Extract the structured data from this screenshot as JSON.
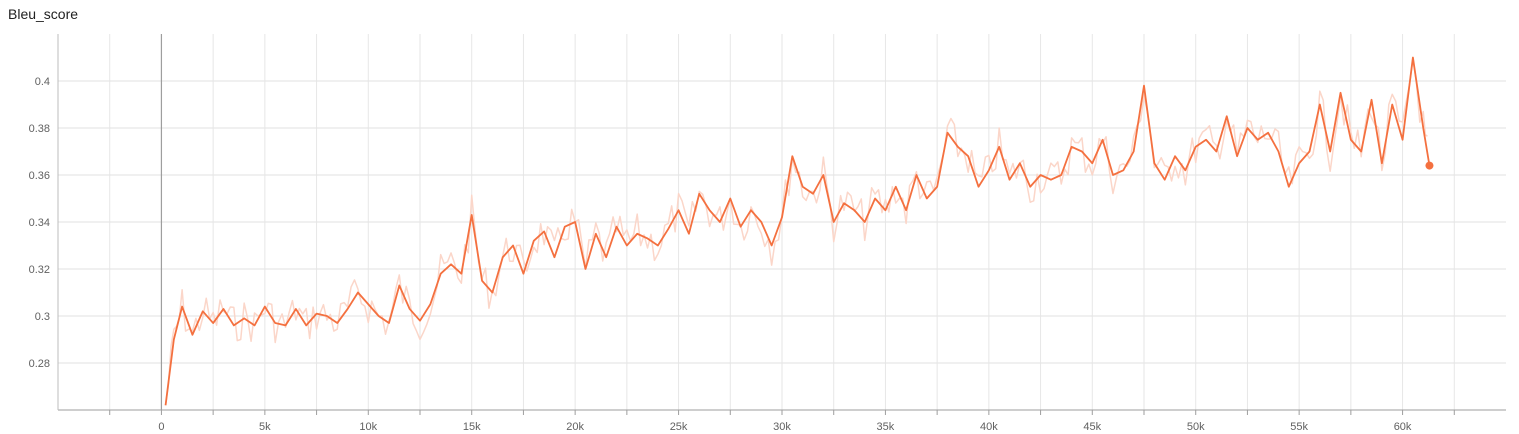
{
  "chart_data": {
    "type": "line",
    "title": "Bleu_score",
    "xlabel": "",
    "ylabel": "",
    "xlim": [
      -5000,
      65000
    ],
    "ylim": [
      0.26,
      0.42
    ],
    "x_ticks": [
      0,
      5000,
      10000,
      15000,
      20000,
      25000,
      30000,
      35000,
      40000,
      45000,
      50000,
      55000,
      60000
    ],
    "x_tick_labels": [
      "0",
      "5k",
      "10k",
      "15k",
      "20k",
      "25k",
      "30k",
      "35k",
      "40k",
      "45k",
      "50k",
      "55k",
      "60k"
    ],
    "y_ticks": [
      0.28,
      0.3,
      0.32,
      0.34,
      0.36,
      0.38,
      0.4
    ],
    "y_tick_labels": [
      "0.28",
      "0.3",
      "0.32",
      "0.34",
      "0.36",
      "0.38",
      "0.4"
    ],
    "grid": true,
    "colors": {
      "smoothed": "#f4703f",
      "raw": "#fbd6c9"
    },
    "series": [
      {
        "x": [
          200,
          600,
          1000,
          1500,
          2000,
          2500,
          3000,
          3500,
          4000,
          4500,
          5000,
          5500,
          6000,
          6500,
          7000,
          7500,
          8000,
          8500,
          9000,
          9500,
          10000,
          10500,
          11000,
          11500,
          12000,
          12500,
          13000,
          13500,
          14000,
          14500,
          15000,
          15500,
          16000,
          16500,
          17000,
          17500,
          18000,
          18500,
          19000,
          19500,
          20000,
          20500,
          21000,
          21500,
          22000,
          22500,
          23000,
          23500,
          24000,
          24500,
          25000,
          25500,
          26000,
          26500,
          27000,
          27500,
          28000,
          28500,
          29000,
          29500,
          30000,
          30500,
          31000,
          31500,
          32000,
          32500,
          33000,
          33500,
          34000,
          34500,
          35000,
          35500,
          36000,
          36500,
          37000,
          37500,
          38000,
          38500,
          39000,
          39500,
          40000,
          40500,
          41000,
          41500,
          42000,
          42500,
          43000,
          43500,
          44000,
          44500,
          45000,
          45500,
          46000,
          46500,
          47000,
          47500,
          48000,
          48500,
          49000,
          49500,
          50000,
          50500,
          51000,
          51500,
          52000,
          52500,
          53000,
          53500,
          54000,
          54500,
          55000,
          55500,
          56000,
          56500,
          57000,
          57500,
          58000,
          58500,
          59000,
          59500,
          60000,
          60500,
          61000,
          61300
        ],
        "values": [
          0.262,
          0.29,
          0.304,
          0.292,
          0.302,
          0.297,
          0.303,
          0.296,
          0.299,
          0.296,
          0.304,
          0.297,
          0.296,
          0.303,
          0.296,
          0.301,
          0.3,
          0.297,
          0.303,
          0.31,
          0.305,
          0.3,
          0.297,
          0.313,
          0.303,
          0.298,
          0.305,
          0.318,
          0.322,
          0.318,
          0.343,
          0.315,
          0.31,
          0.325,
          0.33,
          0.318,
          0.332,
          0.336,
          0.325,
          0.338,
          0.34,
          0.32,
          0.335,
          0.325,
          0.338,
          0.33,
          0.335,
          0.333,
          0.33,
          0.337,
          0.345,
          0.335,
          0.352,
          0.345,
          0.34,
          0.35,
          0.338,
          0.345,
          0.34,
          0.33,
          0.342,
          0.368,
          0.355,
          0.352,
          0.36,
          0.34,
          0.348,
          0.345,
          0.34,
          0.35,
          0.345,
          0.355,
          0.345,
          0.36,
          0.35,
          0.355,
          0.378,
          0.372,
          0.368,
          0.355,
          0.362,
          0.372,
          0.358,
          0.365,
          0.355,
          0.36,
          0.358,
          0.36,
          0.372,
          0.37,
          0.365,
          0.375,
          0.36,
          0.362,
          0.37,
          0.398,
          0.365,
          0.358,
          0.368,
          0.362,
          0.372,
          0.375,
          0.37,
          0.385,
          0.368,
          0.38,
          0.375,
          0.378,
          0.37,
          0.355,
          0.365,
          0.37,
          0.39,
          0.37,
          0.395,
          0.375,
          0.37,
          0.392,
          0.365,
          0.39,
          0.375,
          0.41,
          0.38,
          0.364
        ]
      }
    ]
  }
}
